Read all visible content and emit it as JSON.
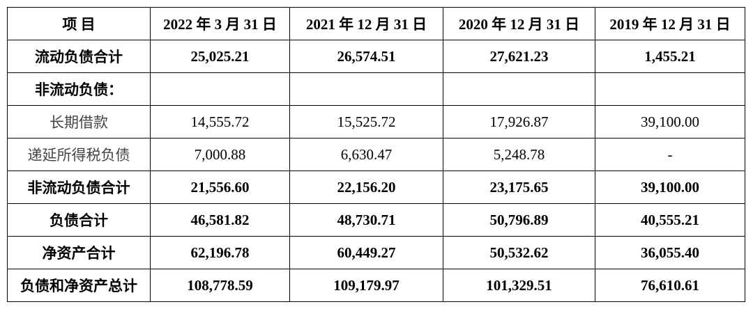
{
  "table": {
    "header": [
      "项 目",
      "2022 年 3 月 31 日",
      "2021 年 12 月 31 日",
      "2020 年 12 月 31 日",
      "2019 年 12 月 31 日"
    ],
    "rows": [
      {
        "label": "流动负债合计",
        "bold": true,
        "cells": [
          "25,025.21",
          "26,574.51",
          "27,621.23",
          "1,455.21"
        ]
      },
      {
        "label": "非流动负债：",
        "bold": true
      },
      {
        "label": "长期借款",
        "bold": false,
        "cells": [
          "14,555.72",
          "15,525.72",
          "17,926.87",
          "39,100.00"
        ]
      },
      {
        "label": "递延所得税负债",
        "bold": false,
        "cells": [
          "7,000.88",
          "6,630.47",
          "5,248.78",
          "-"
        ]
      },
      {
        "label": "非流动负债合计",
        "bold": true,
        "cells": [
          "21,556.60",
          "22,156.20",
          "23,175.65",
          "39,100.00"
        ]
      },
      {
        "label": "负债合计",
        "bold": true,
        "cells": [
          "46,581.82",
          "48,730.71",
          "50,796.89",
          "40,555.21"
        ]
      },
      {
        "label": "净资产合计",
        "bold": true,
        "cells": [
          "62,196.78",
          "60,449.27",
          "50,532.62",
          "36,055.40"
        ]
      },
      {
        "label": "负债和净资产总计",
        "bold": true,
        "cells": [
          "108,778.59",
          "109,179.97",
          "101,329.51",
          "76,610.61"
        ]
      }
    ]
  }
}
